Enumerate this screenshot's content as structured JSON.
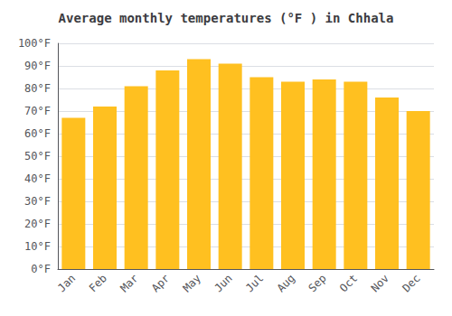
{
  "chart_data": {
    "type": "bar",
    "title": "Average monthly temperatures (°F ) in Chhala",
    "categories": [
      "Jan",
      "Feb",
      "Mar",
      "Apr",
      "May",
      "Jun",
      "Jul",
      "Aug",
      "Sep",
      "Oct",
      "Nov",
      "Dec"
    ],
    "values": [
      67,
      72,
      81,
      88,
      93,
      91,
      85,
      83,
      84,
      83,
      76,
      70
    ],
    "color": "#FFC020",
    "ylim": [
      0,
      100
    ],
    "yticks": [
      {
        "value": 0,
        "label": "0°F"
      },
      {
        "value": 10,
        "label": "10°F"
      },
      {
        "value": 20,
        "label": "20°F"
      },
      {
        "value": 30,
        "label": "30°F"
      },
      {
        "value": 40,
        "label": "40°F"
      },
      {
        "value": 50,
        "label": "50°F"
      },
      {
        "value": 60,
        "label": "60°F"
      },
      {
        "value": 70,
        "label": "70°F"
      },
      {
        "value": 80,
        "label": "80°F"
      },
      {
        "value": 90,
        "label": "90°F"
      },
      {
        "value": 100,
        "label": "100°F"
      }
    ],
    "grid": true
  }
}
